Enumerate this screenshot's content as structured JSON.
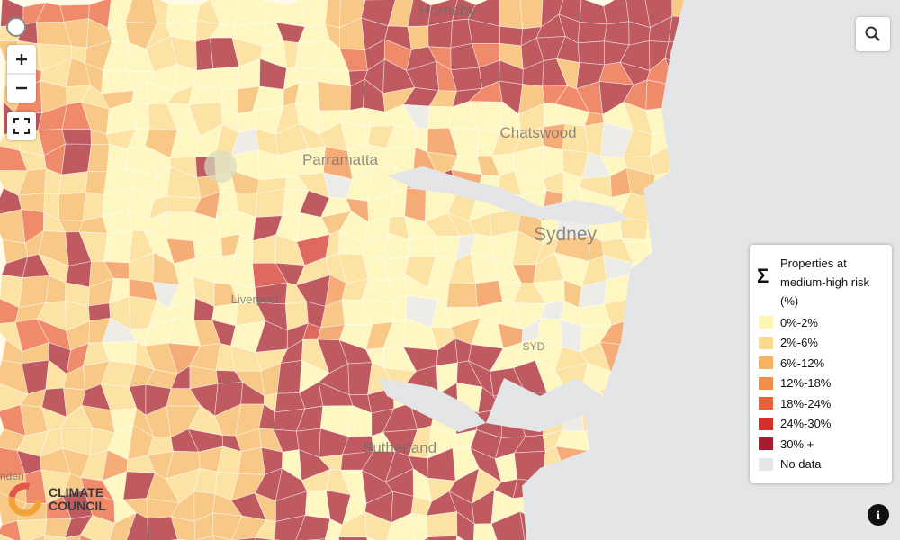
{
  "map": {
    "place_labels": [
      "Hornsby",
      "Chatswood",
      "Parramatta",
      "Sydney",
      "SYD",
      "Liverpool",
      "Sutherland",
      "nden"
    ]
  },
  "legend": {
    "symbol": "Σ",
    "title_lines": [
      "Properties at",
      "medium-high risk",
      "(%)"
    ],
    "items": [
      {
        "label": "0%-2%",
        "color": "#fdf5b4"
      },
      {
        "label": "2%-6%",
        "color": "#fbd98b"
      },
      {
        "label": "6%-12%",
        "color": "#f5b462"
      },
      {
        "label": "12%-18%",
        "color": "#f18e4c"
      },
      {
        "label": "18%-24%",
        "color": "#e9603c"
      },
      {
        "label": "24%-30%",
        "color": "#d2302a"
      },
      {
        "label": "30% +",
        "color": "#a61c2e"
      },
      {
        "label": "No data",
        "color": "#e6e6e6"
      }
    ]
  },
  "logo": {
    "line1": "CLIMATE",
    "line2": "COUNCIL"
  }
}
